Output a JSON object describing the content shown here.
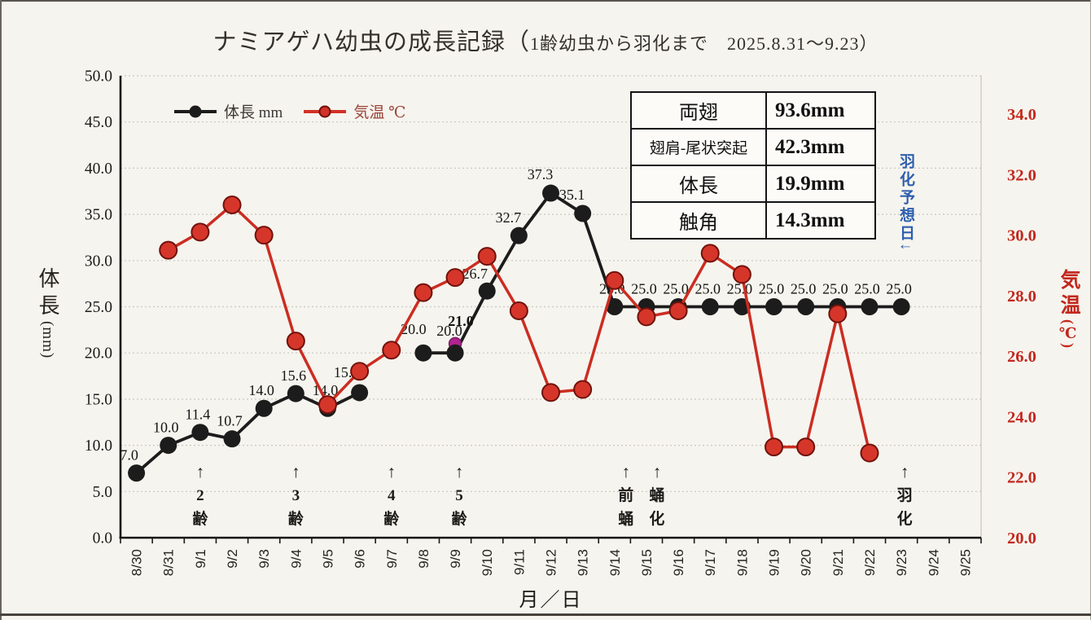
{
  "page": {
    "title_main": "ナミアゲハ幼虫の成長記録（",
    "title_sub": "1齢幼虫から羽化まで　2025.8.31～9.23）"
  },
  "legend": {
    "items": [
      {
        "label": "体長 mm",
        "color": "#1c1c1c",
        "label_color": "#3b3733"
      },
      {
        "label": "気温 ℃",
        "color": "#d23227",
        "label_color": "#9c443a"
      }
    ]
  },
  "measurement_table": {
    "rows": [
      {
        "label": "両翅",
        "value": "93.6mm"
      },
      {
        "label": "翅肩-尾状突起",
        "value": "42.3mm"
      },
      {
        "label": "体長",
        "value": "19.9mm"
      },
      {
        "label": "触角",
        "value": "14.3mm"
      }
    ]
  },
  "chart_data": {
    "type": "line",
    "title": "ナミアゲハ幼虫の成長記録（1齢幼虫から羽化まで　2025.8.31～9.23）",
    "x_title": "月／日",
    "grid": true,
    "legend_position": "top-left",
    "categories": [
      "8/30",
      "8/31",
      "9/1",
      "9/2",
      "9/3",
      "9/4",
      "9/5",
      "9/6",
      "9/7",
      "9/8",
      "9/9",
      "9/10",
      "9/11",
      "9/12",
      "9/13",
      "9/14",
      "9/15",
      "9/16",
      "9/17",
      "9/18",
      "9/19",
      "9/20",
      "9/21",
      "9/22",
      "9/23",
      "9/24",
      "9/25"
    ],
    "y_left_axis": {
      "title": "体長",
      "unit": "(mm)",
      "min": 0,
      "max": 50,
      "step": 5,
      "color": "#26231f"
    },
    "y_right_axis": {
      "title": "気温",
      "unit": "(℃)",
      "min": 20,
      "max": 34,
      "step": 2,
      "color": "#c2281e"
    },
    "series": [
      {
        "name": "体長 mm",
        "axis": "left",
        "color": "#1c1c1c",
        "values": [
          7.0,
          10.0,
          11.4,
          10.7,
          14.0,
          15.6,
          14.0,
          15.7,
          null,
          20.0,
          20.0,
          26.7,
          32.7,
          37.3,
          35.1,
          25.0,
          25.0,
          25.0,
          25.0,
          25.0,
          25.0,
          25.0,
          25.0,
          25.0,
          25.0,
          null,
          null
        ],
        "labels": [
          "7.0",
          "10.0",
          "11.4",
          "10.7",
          "14.0",
          "15.6",
          "14.0",
          "15.7",
          null,
          "20.0",
          "20.0",
          "26.7",
          "32.7",
          "37.3",
          "35.1",
          "25.0",
          "25.0",
          "25.0",
          "25.0",
          "25.0",
          "25.0",
          "25.0",
          "25.0",
          "25.0",
          "25.0",
          null,
          null
        ]
      },
      {
        "name": "気温 ℃",
        "axis": "right",
        "color": "#d6362a",
        "values": [
          null,
          29.5,
          30.1,
          31.0,
          30.0,
          26.5,
          24.4,
          25.5,
          26.2,
          28.1,
          28.6,
          29.3,
          27.5,
          24.8,
          24.9,
          28.5,
          27.3,
          27.5,
          29.4,
          28.7,
          23.0,
          23.0,
          27.4,
          22.8,
          null,
          null,
          null
        ]
      }
    ],
    "extra_marker": {
      "category": "9/9",
      "value": 21.0,
      "label": "21.0",
      "color": "#b02390"
    },
    "stage_annotations": [
      {
        "category": "9/1",
        "arrow": "↑",
        "label": "2齢",
        "dx": 0
      },
      {
        "category": "9/4",
        "arrow": "↑",
        "label": "3齢",
        "dx": 0
      },
      {
        "category": "9/7",
        "arrow": "↑",
        "label": "4齢",
        "dx": 0
      },
      {
        "category": "9/9",
        "arrow": "↑",
        "label": "5齢",
        "dx": 5
      },
      {
        "category": "9/14",
        "arrow": "↑",
        "label": "前蛹",
        "dx": 14
      },
      {
        "category": "9/15",
        "arrow": "↑",
        "label": "蛹化",
        "dx": 13
      },
      {
        "category": "9/23",
        "arrow": "↑",
        "label": "羽化",
        "dx": 4
      }
    ],
    "note": {
      "text": "羽化予想日↓",
      "color": "#2e5fae"
    }
  }
}
